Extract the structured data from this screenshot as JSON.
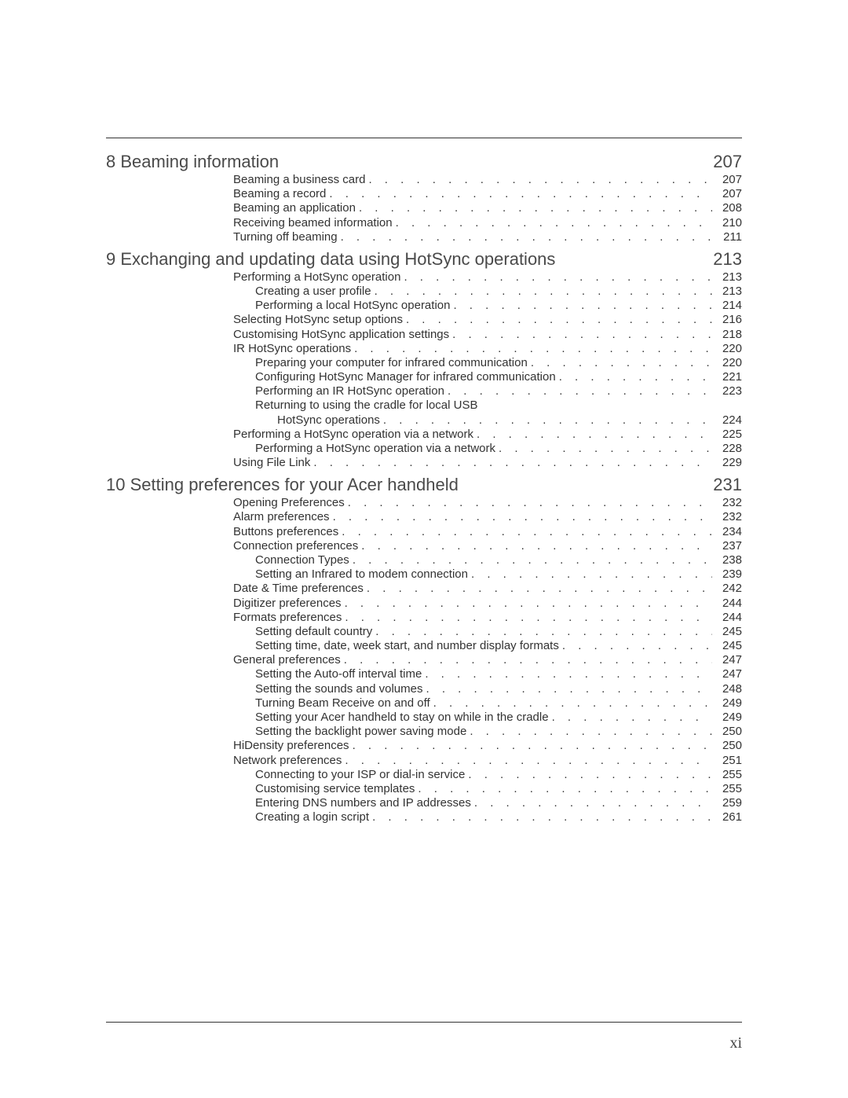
{
  "page_number": "xi",
  "chapters": [
    {
      "num": "8",
      "title": "Beaming information",
      "page": "207",
      "entries": [
        {
          "level": 1,
          "text": "Beaming a business card",
          "page": "207"
        },
        {
          "level": 1,
          "text": "Beaming a record",
          "page": "207"
        },
        {
          "level": 1,
          "text": "Beaming an application",
          "page": "208"
        },
        {
          "level": 1,
          "text": "Receiving beamed information",
          "page": "210"
        },
        {
          "level": 1,
          "text": "Turning off beaming",
          "page": "211"
        }
      ]
    },
    {
      "num": "9",
      "title": "Exchanging and updating data using HotSync operations",
      "page": "213",
      "entries": [
        {
          "level": 1,
          "text": "Performing a HotSync operation",
          "page": "213"
        },
        {
          "level": 2,
          "text": "Creating a user profile",
          "page": "213"
        },
        {
          "level": 2,
          "text": "Performing a local HotSync operation",
          "page": "214"
        },
        {
          "level": 1,
          "text": "Selecting HotSync setup options",
          "page": "216"
        },
        {
          "level": 1,
          "text": "Customising HotSync application settings",
          "page": "218"
        },
        {
          "level": 1,
          "text": "IR HotSync operations",
          "page": "220"
        },
        {
          "level": 2,
          "text": "Preparing your computer for infrared communication",
          "page": "220"
        },
        {
          "level": 2,
          "text": "Configuring HotSync Manager for infrared communication",
          "page": "221"
        },
        {
          "level": 2,
          "text": "Performing an IR HotSync operation",
          "page": "223"
        },
        {
          "level": 2,
          "text": "Returning to using the cradle for local USB",
          "text2": "HotSync operations",
          "page": "224",
          "wrap": true
        },
        {
          "level": 1,
          "text": "Performing a HotSync operation via a network",
          "page": "225"
        },
        {
          "level": 2,
          "text": "Performing a HotSync operation via a network",
          "page": "228"
        },
        {
          "level": 1,
          "text": "Using File Link",
          "page": "229"
        }
      ]
    },
    {
      "num": "10",
      "title": "Setting preferences for your Acer handheld",
      "page": "231",
      "entries": [
        {
          "level": 1,
          "text": "Opening Preferences",
          "page": "232"
        },
        {
          "level": 1,
          "text": "Alarm preferences",
          "page": "232"
        },
        {
          "level": 1,
          "text": "Buttons preferences",
          "page": "234"
        },
        {
          "level": 1,
          "text": "Connection preferences",
          "page": "237"
        },
        {
          "level": 2,
          "text": "Connection Types",
          "page": "238"
        },
        {
          "level": 2,
          "text": "Setting an Infrared to modem connection",
          "page": "239"
        },
        {
          "level": 1,
          "text": "Date & Time preferences",
          "page": "242"
        },
        {
          "level": 1,
          "text": "Digitizer preferences",
          "page": "244"
        },
        {
          "level": 1,
          "text": "Formats preferences",
          "page": "244"
        },
        {
          "level": 2,
          "text": "Setting default country",
          "page": "245"
        },
        {
          "level": 2,
          "text": "Setting time, date, week start, and number display formats",
          "page": "245"
        },
        {
          "level": 1,
          "text": "General preferences",
          "page": "247"
        },
        {
          "level": 2,
          "text": "Setting the Auto-off interval time",
          "page": "247"
        },
        {
          "level": 2,
          "text": "Setting the sounds and volumes",
          "page": "248"
        },
        {
          "level": 2,
          "text": "Turning Beam Receive on and off",
          "page": "249"
        },
        {
          "level": 2,
          "text": "Setting your Acer handheld to stay on while in the cradle",
          "page": "249"
        },
        {
          "level": 2,
          "text": "Setting the backlight power saving mode",
          "page": "250"
        },
        {
          "level": 1,
          "text": "HiDensity preferences",
          "page": "250"
        },
        {
          "level": 1,
          "text": "Network preferences",
          "page": "251"
        },
        {
          "level": 2,
          "text": "Connecting to your ISP or dial-in service",
          "page": "255"
        },
        {
          "level": 2,
          "text": "Customising service templates",
          "page": "255"
        },
        {
          "level": 2,
          "text": "Entering DNS numbers and IP addresses",
          "page": "259"
        },
        {
          "level": 2,
          "text": "Creating a login script",
          "page": "261"
        }
      ]
    }
  ]
}
